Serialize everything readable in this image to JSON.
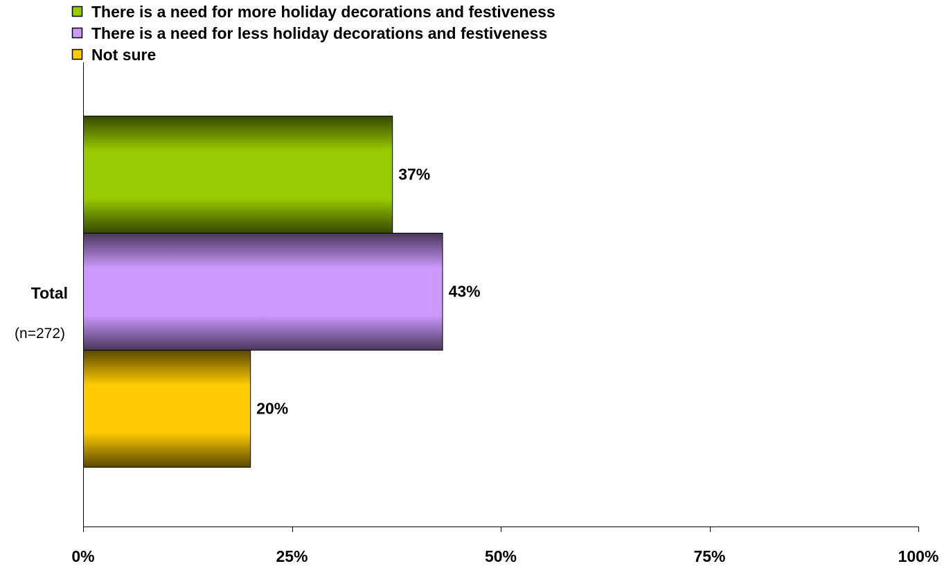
{
  "chart_data": {
    "type": "bar",
    "orientation": "horizontal",
    "categories": [
      "Total"
    ],
    "category_sublabel": "(n=272)",
    "series": [
      {
        "name": "There is a need for more holiday decorations and festiveness",
        "values": [
          37
        ],
        "value_labels": [
          "37%"
        ],
        "color": "#99CC00"
      },
      {
        "name": "There is a need for less holiday decorations and festiveness",
        "values": [
          43
        ],
        "value_labels": [
          "43%"
        ],
        "color": "#CC99FF"
      },
      {
        "name": "Not sure",
        "values": [
          20
        ],
        "value_labels": [
          "20%"
        ],
        "color": "#FFCC00"
      }
    ],
    "xlim": [
      0,
      100
    ],
    "x_ticks": [
      0,
      25,
      50,
      75,
      100
    ],
    "x_tick_labels": [
      "0%",
      "25%",
      "50%",
      "75%",
      "100%"
    ],
    "legend_position": "top-left",
    "grid": false
  }
}
